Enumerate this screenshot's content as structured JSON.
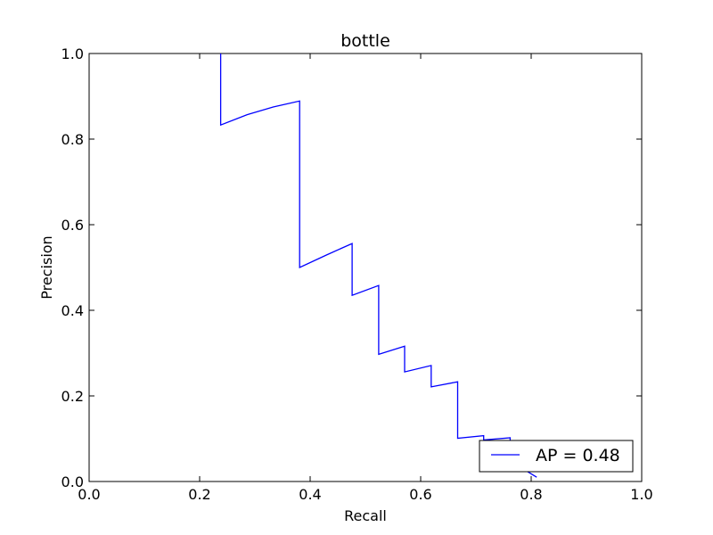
{
  "chart_data": {
    "type": "line",
    "title": "bottle",
    "xlabel": "Recall",
    "ylabel": "Precision",
    "xlim": [
      0.0,
      1.0
    ],
    "ylim": [
      0.0,
      1.0
    ],
    "xticks": [
      0.0,
      0.2,
      0.4,
      0.6,
      0.8,
      1.0
    ],
    "yticks": [
      0.0,
      0.2,
      0.4,
      0.6,
      0.8,
      1.0
    ],
    "xtick_labels": [
      "0.0",
      "0.2",
      "0.4",
      "0.6",
      "0.8",
      "1.0"
    ],
    "ytick_labels": [
      "0.0",
      "0.2",
      "0.4",
      "0.6",
      "0.8",
      "1.0"
    ],
    "grid": false,
    "legend_position": "lower-right",
    "series": [
      {
        "name": "AP = 0.48",
        "color": "#0000ff",
        "x": [
          0.238,
          0.238,
          0.286,
          0.333,
          0.381,
          0.381,
          0.429,
          0.476,
          0.476,
          0.524,
          0.524,
          0.571,
          0.571,
          0.619,
          0.619,
          0.667,
          0.667,
          0.714,
          0.714,
          0.762,
          0.762,
          0.81
        ],
        "y": [
          1.0,
          0.833,
          0.857,
          0.875,
          0.889,
          0.5,
          0.529,
          0.556,
          0.435,
          0.458,
          0.297,
          0.316,
          0.256,
          0.271,
          0.221,
          0.233,
          0.101,
          0.107,
          0.097,
          0.102,
          0.048,
          0.01
        ]
      }
    ]
  }
}
